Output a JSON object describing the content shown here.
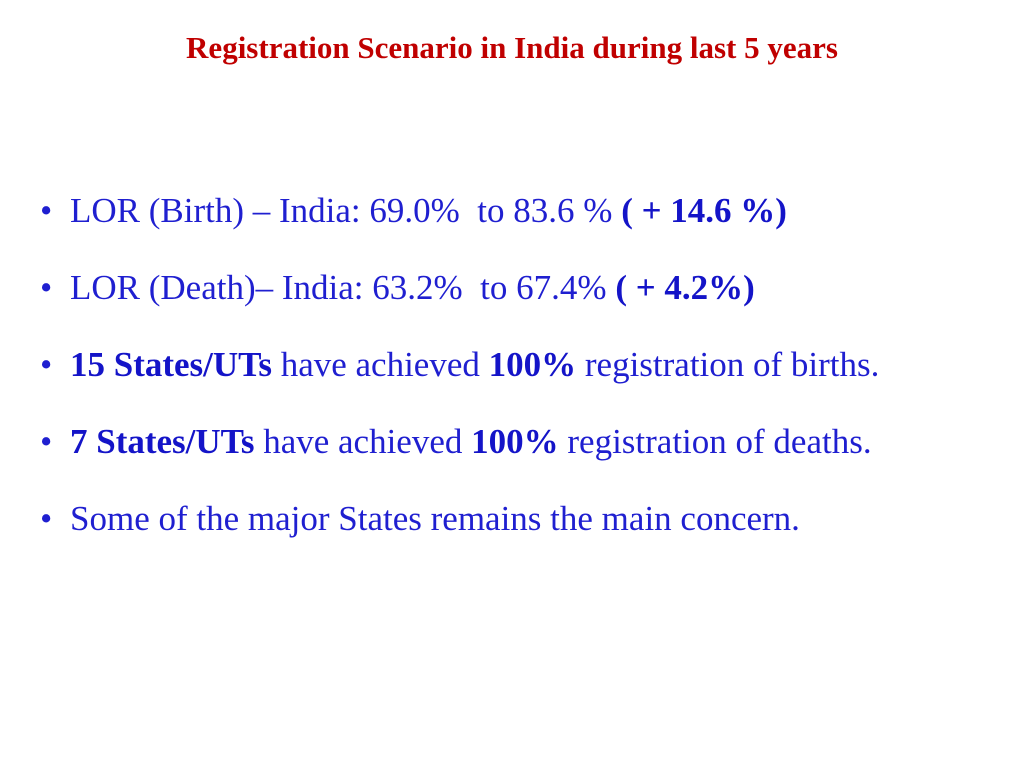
{
  "header": {
    "title": "Registration Scenario in India during last 5 years"
  },
  "bullets": [
    {
      "parts": [
        {
          "text": "LOR (Birth) – India: 69.0%  to 83.6 %",
          "bold": false
        },
        {
          "text": "( + 14.6 %)",
          "bold": true
        }
      ]
    },
    {
      "parts": [
        {
          "text": "LOR (Death)– India: 63.2%  to 67.4%",
          "bold": false
        },
        {
          "text": "( + 4.2%)",
          "bold": true
        }
      ]
    },
    {
      "parts": [
        {
          "text": "15 States/UTs",
          "bold": true
        },
        {
          "text": "have achieved",
          "bold": false
        },
        {
          "text": "100%",
          "bold": true
        },
        {
          "text": "registration of births.",
          "bold": false
        }
      ]
    },
    {
      "parts": [
        {
          "text": "7 States/UTs",
          "bold": true
        },
        {
          "text": "have achieved",
          "bold": false
        },
        {
          "text": "100%",
          "bold": true
        },
        {
          "text": "registration of deaths.",
          "bold": false
        }
      ]
    },
    {
      "parts": [
        {
          "text": "Some of the major States remains the main concern.",
          "bold": false
        }
      ]
    }
  ]
}
